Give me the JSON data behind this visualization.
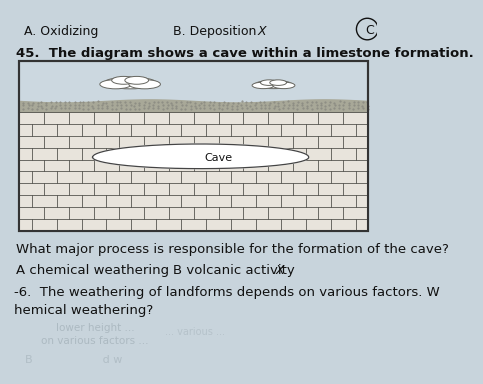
{
  "bg_color": "#c8d4dc",
  "sky_color": "#ccd8e0",
  "diagram_border": "#333333",
  "rock_color": "#e8e4dc",
  "rock_line_color": "#555550",
  "soil_color": "#a8a898",
  "soil_dot_color": "#888880",
  "cave_fill": "#f0ede8",
  "cave_edge": "#444444",
  "text_color": "#111111",
  "faded_text_color": "#9aa8b0",
  "line1_left": "A. Oxidizing",
  "line1_right": "B. Deposition",
  "line1_cross": "X",
  "line1_C": "C",
  "question45": "45.  The diagram shows a cave within a limestone formation.",
  "cave_label": "Cave",
  "question_bottom": "What major process is responsible for the formation of the cave?",
  "answer_A": "A chemical weathering",
  "answer_B": "B volcanic activity",
  "answer_B_cross": "X",
  "question46": "-6.  The weathering of landforms depends on various factors. W",
  "question46b": "hemical weathering?",
  "num_brick_rows": 10,
  "num_brick_cols": 14
}
